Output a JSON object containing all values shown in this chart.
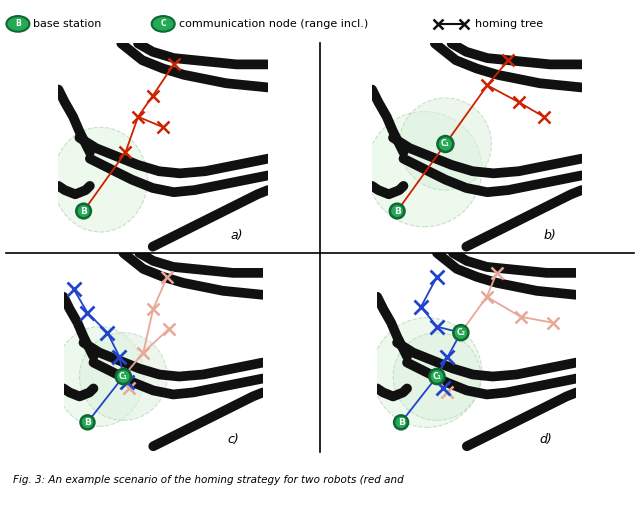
{
  "background_color": "#ffffff",
  "cave_wall_color": "#111111",
  "cave_wall_lw": 7,
  "green_bg_color": "#e8f5e8",
  "green_bg_edge": "#aaccaa",
  "base_color": "#22aa55",
  "base_edge_color": "#116633",
  "comm_color": "#22aa55",
  "comm_edge_color": "#116633",
  "red_color": "#cc2200",
  "red_faded_color": "#e8a898",
  "blue_color": "#2244cc",
  "blue_faded_color": "#9898e0",
  "black": "#111111",
  "caption": "Fig. 3: An example scenario of the homing strategy for two robots (red and",
  "panels": [
    "a)",
    "b)",
    "c)",
    "d)"
  ],
  "legend_bs_label": "base station",
  "legend_cn_label": "communication node (range incl.)",
  "legend_ht_label": "homing tree"
}
